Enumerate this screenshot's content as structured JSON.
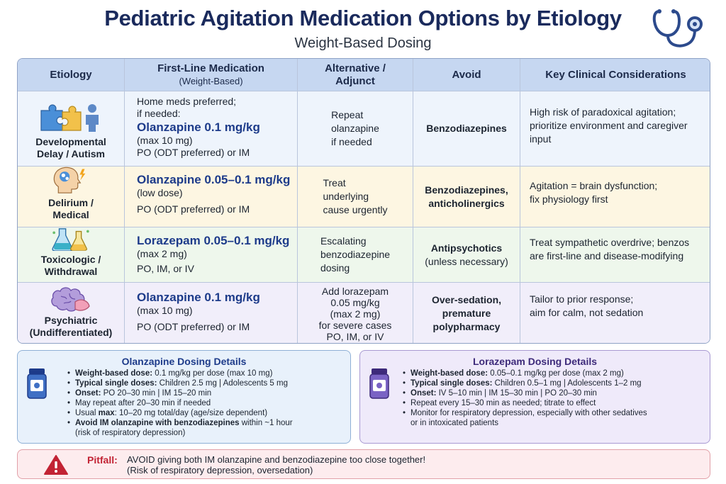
{
  "title": "Pediatric Agitation Medication Options by Etiology",
  "subtitle": "Weight-Based Dosing",
  "icons": {
    "header": "stethoscope-icon",
    "accent": "#1a2a5c",
    "drug_color": "#1d3b8a",
    "warning_color": "#c22334"
  },
  "table": {
    "headers": {
      "etiology": "Etiology",
      "first_line": "First-Line Medication",
      "first_line_sub": "(Weight-Based)",
      "alternative_1": "Alternative /",
      "alternative_2": "Adjunct",
      "avoid": "Avoid",
      "key": "Key Clinical Considerations"
    },
    "rows": [
      {
        "icon": "puzzle-child-icon",
        "etiology_1": "Developmental",
        "etiology_2": "Delay / Autism",
        "med_pre_1": "Home meds preferred;",
        "med_pre_2": "if needed:",
        "drug": "Olanzapine 0.1 mg/kg",
        "dose": "(max 10 mg)",
        "route": "PO (ODT preferred) or IM",
        "alt_1": "Repeat",
        "alt_2": "olanzapine",
        "alt_3": "if needed",
        "avoid_1": "Benzodiazepines",
        "key_1": "High risk of paradoxical agitation;",
        "key_2": "prioritize environment and caregiver",
        "key_3": "input"
      },
      {
        "icon": "brain-head-icon",
        "etiology_1": "Delirium /",
        "etiology_2": "Medical",
        "drug": "Olanzapine 0.05–0.1 mg/kg",
        "dose": "(low dose)",
        "route": "PO (ODT preferred) or IM",
        "alt_1": "Treat",
        "alt_2": "underlying",
        "alt_3": "cause urgently",
        "avoid_1": "Benzodiazepines,",
        "avoid_2": "anticholinergics",
        "key_1": "Agitation = brain dysfunction;",
        "key_2": "fix physiology first"
      },
      {
        "icon": "flask-icon",
        "etiology_1": "Toxicologic /",
        "etiology_2": "Withdrawal",
        "drug": "Lorazepam 0.05–0.1 mg/kg",
        "dose": "(max 2 mg)",
        "route": "PO, IM, or IV",
        "alt_1": "Escalating",
        "alt_2": "benzodiazepine",
        "alt_3": "dosing",
        "avoid_1": "Antipsychotics",
        "avoid_2": "(unless necessary)",
        "key_1": "Treat sympathetic overdrive; benzos",
        "key_2": "are first-line and disease-modifying"
      },
      {
        "icon": "brain-icon",
        "etiology_1": "Psychiatric",
        "etiology_2": "(Undifferentiated)",
        "drug": "Olanzapine 0.1 mg/kg",
        "dose": "(max 10 mg)",
        "route": "PO (ODT preferred) or IM",
        "alt_1": "Add lorazepam",
        "alt_2": "0.05 mg/kg",
        "alt_3": "(max 2 mg)",
        "alt_4": "for severe cases",
        "alt_5": "PO, IM, or IV",
        "avoid_1": "Over-sedation,",
        "avoid_2": "premature",
        "avoid_3": "polypharmacy",
        "key_1": "Tailor to prior response;",
        "key_2": "aim for calm, not sedation"
      }
    ]
  },
  "olanzapine_box": {
    "icon": "pill-bottle-icon",
    "title": "Olanzapine Dosing Details",
    "items": [
      {
        "label": "Weight-based dose:",
        "text": " 0.1 mg/kg per dose (max 10 mg)"
      },
      {
        "label": "Typical single doses:",
        "text": " Children 2.5 mg  |  Adolescents 5 mg"
      },
      {
        "label": "Onset:",
        "text": " PO 20–30 min  |  IM 15–20 min"
      },
      {
        "label": "",
        "text": "May repeat after 20–30 min if needed"
      },
      {
        "label": "",
        "text_pre": "Usual ",
        "label_mid": "max",
        "text": ": 10–20 mg total/day (age/size dependent)"
      },
      {
        "label": "Avoid IM olanzapine with benzodiazepines",
        "text": " within ~1 hour",
        "text_2": "(risk of respiratory depression)"
      }
    ]
  },
  "lorazepam_box": {
    "icon": "pill-bottle-icon",
    "title": "Lorazepam Dosing Details",
    "items": [
      {
        "label": "Weight-based dose:",
        "text": " 0.05–0.1 mg/kg per dose (max 2 mg)"
      },
      {
        "label": "Typical single doses:",
        "text": " Children 0.5–1 mg  |  Adolescents 1–2 mg"
      },
      {
        "label": "Onset:",
        "text": " IV 5–10 min | IM 15–30 min  |  PO 20–30 min"
      },
      {
        "label": "",
        "text": "Repeat every 15–30 min as needed; titrate to effect"
      },
      {
        "label": "",
        "text": "Monitor for respiratory depression, especially with other sedatives",
        "text_2": "or in intoxicated patients"
      }
    ]
  },
  "pitfall": {
    "icon": "warning-icon",
    "label": "Pitfall:",
    "text_1": "AVOID giving both IM olanzapine and benzodiazepine too close together!",
    "text_2": "(Risk of respiratory depression, oversedation)"
  }
}
